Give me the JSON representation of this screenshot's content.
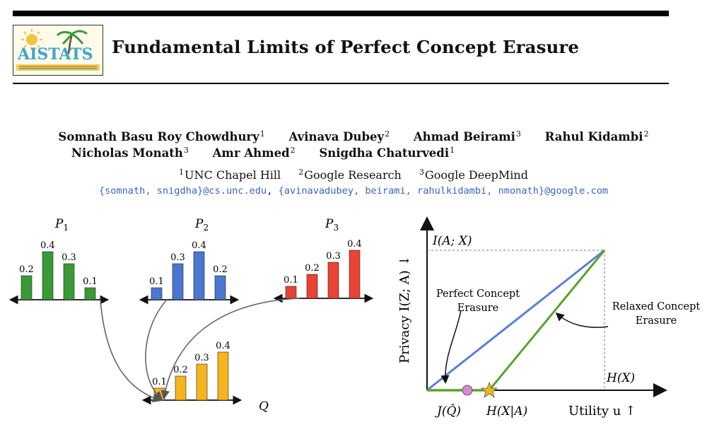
{
  "header": {
    "title": "Fundamental Limits of Perfect Concept Erasure",
    "logo_text": "AISTATS"
  },
  "authors_line1": [
    {
      "name": "Somnath Basu Roy Chowdhury",
      "aff": "1"
    },
    {
      "name": "Avinava Dubey",
      "aff": "2"
    },
    {
      "name": "Ahmad Beirami",
      "aff": "3"
    },
    {
      "name": "Rahul Kidambi",
      "aff": "2"
    }
  ],
  "authors_line2": [
    {
      "name": "Nicholas Monath",
      "aff": "3"
    },
    {
      "name": "Amr Ahmed",
      "aff": "2"
    },
    {
      "name": "Snigdha Chaturvedi",
      "aff": "1"
    }
  ],
  "affiliations": [
    {
      "num": "1",
      "name": "UNC Chapel Hill"
    },
    {
      "num": "2",
      "name": "Google Research"
    },
    {
      "num": "3",
      "name": "Google DeepMind"
    }
  ],
  "emails": {
    "part1": "{somnath, snigdha}@cs.unc.edu",
    "sep": ", ",
    "part2": "{avinavadubey, beirami, rahulkidambi, nmonath}@google.com"
  },
  "left_figure": {
    "distributions": [
      {
        "label": "P",
        "sub": "1",
        "values": [
          "0.2",
          "0.4",
          "0.3",
          "0.1"
        ],
        "color": "#3a9a35"
      },
      {
        "label": "P",
        "sub": "2",
        "values": [
          "0.1",
          "0.3",
          "0.4",
          "0.2"
        ],
        "color": "#4a77d1"
      },
      {
        "label": "P",
        "sub": "3",
        "values": [
          "0.1",
          "0.2",
          "0.3",
          "0.4"
        ],
        "color": "#ea4335"
      }
    ],
    "result": {
      "label": "Q",
      "values": [
        "0.1",
        "0.2",
        "0.3",
        "0.4"
      ],
      "color": "#f6b51d"
    }
  },
  "right_figure": {
    "y_axis_label": "Privacy I(Z; A) ↓",
    "x_axis_label": "Utility u ↑",
    "y_top_label": "I(A; X)",
    "x_right_label": "H(X)",
    "x_mid_label": "H(X|A)",
    "x_left_label": "J(Q̂)",
    "annotation_perfect": [
      "Perfect Concept",
      "Erasure"
    ],
    "annotation_relaxed": [
      "Relaxed Concept",
      "Erasure"
    ],
    "colors": {
      "blue_line": "#5b7fd8",
      "green_line": "#5aa32c",
      "star": "#f2b61c",
      "circle": "#d38bd8"
    }
  }
}
